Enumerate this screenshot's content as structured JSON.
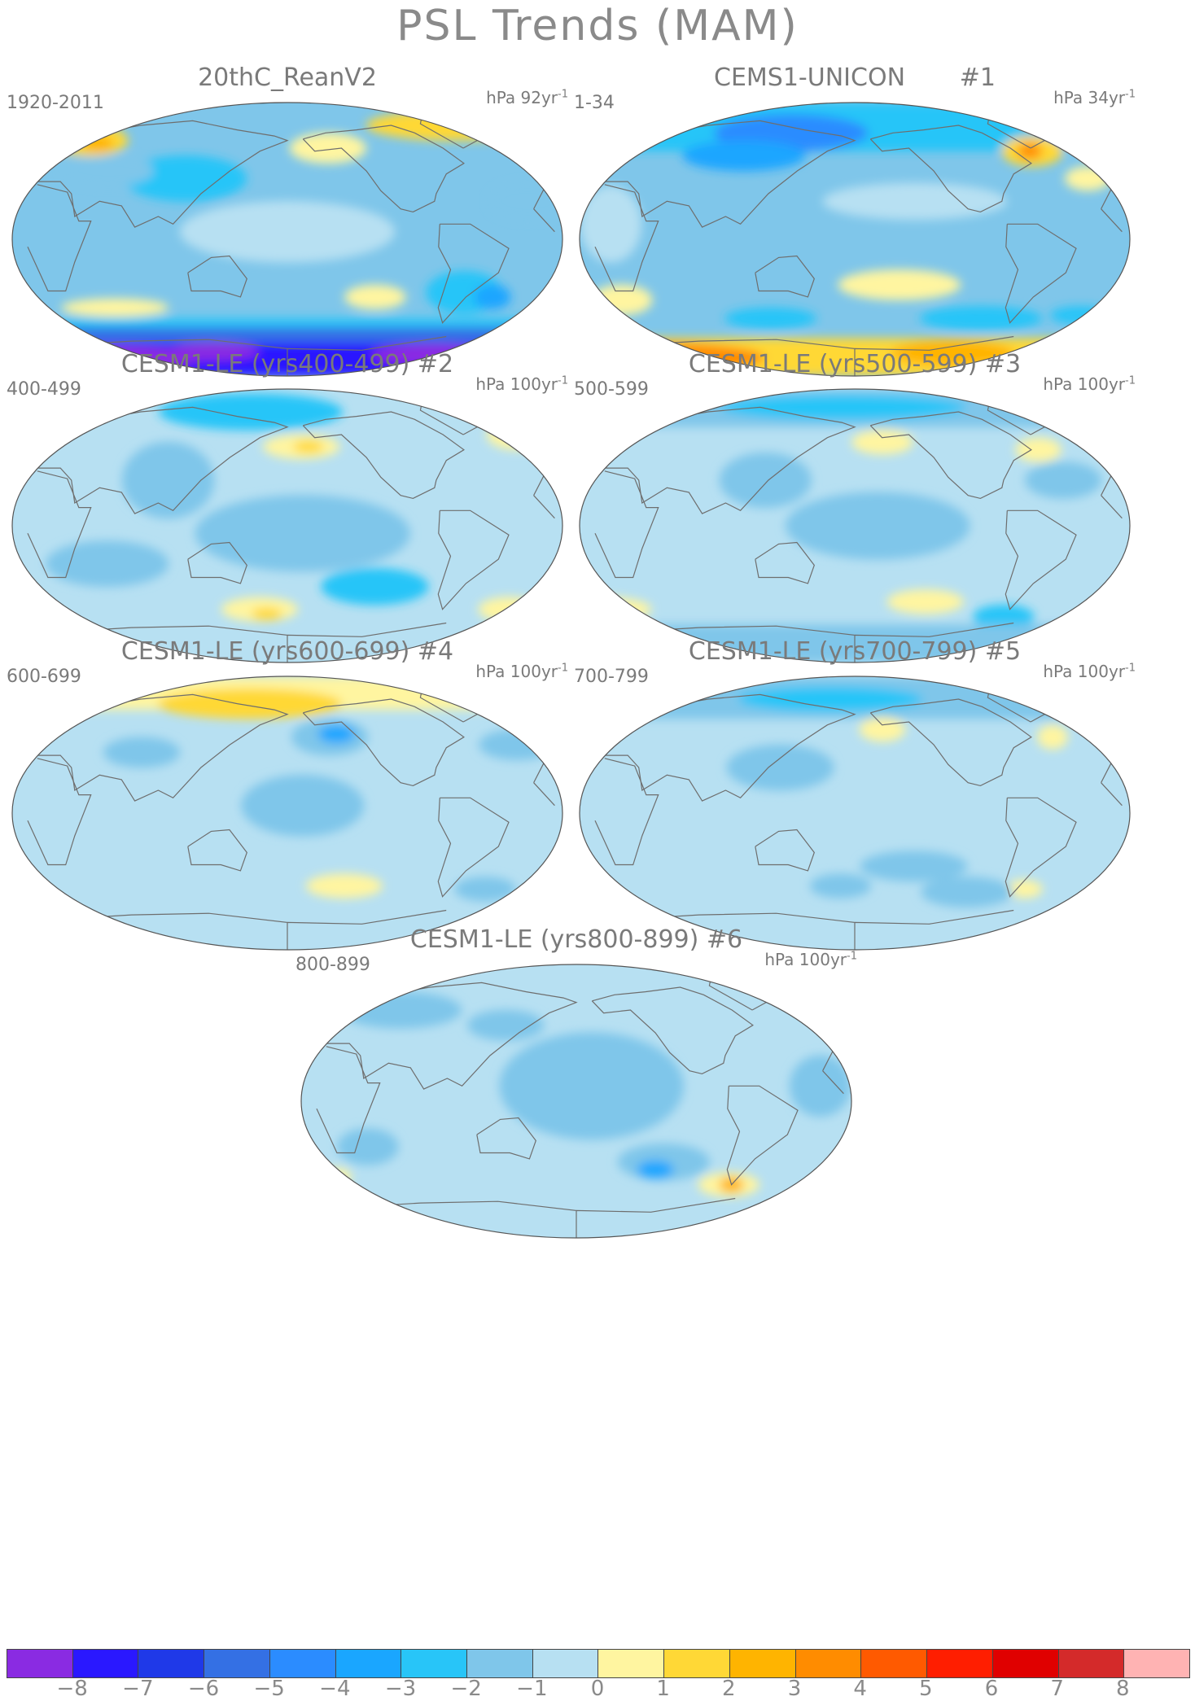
{
  "title": "PSL Trends (MAM)",
  "panels": [
    {
      "title": "20thC_ReanV2",
      "years": "1920-2011",
      "units_base": "hPa 92yr",
      "units_exp": "-1",
      "features": [
        {
          "kind": "band",
          "lat0": -90,
          "lat1": -68,
          "level": -7
        },
        {
          "kind": "band",
          "lat0": -68,
          "lat1": -58,
          "level": -5
        },
        {
          "kind": "band",
          "lat0": -58,
          "lat1": -52,
          "level": -2
        },
        {
          "kind": "blob",
          "lon": 30,
          "lat": -78,
          "rx": 60,
          "ry": 8,
          "level": -8
        },
        {
          "kind": "blob",
          "lon": -60,
          "lat": -76,
          "rx": 40,
          "ry": 7,
          "level": -8
        },
        {
          "kind": "blob",
          "lon": 120,
          "lat": -74,
          "rx": 30,
          "ry": 6,
          "level": -8
        },
        {
          "kind": "blob",
          "lon": 60,
          "lat": -45,
          "rx": 35,
          "ry": 6,
          "level": 1
        },
        {
          "kind": "blob",
          "lon": -120,
          "lat": -38,
          "rx": 20,
          "ry": 8,
          "level": 1
        },
        {
          "kind": "blob",
          "lon": -60,
          "lat": -35,
          "rx": 25,
          "ry": 14,
          "level": -2
        },
        {
          "kind": "blob",
          "lon": -40,
          "lat": -38,
          "rx": 12,
          "ry": 8,
          "level": -3
        },
        {
          "kind": "blob",
          "lon": 110,
          "lat": 40,
          "rx": 40,
          "ry": 15,
          "level": -2
        },
        {
          "kind": "blob",
          "lon": 55,
          "lat": 45,
          "rx": 30,
          "ry": 10,
          "level": -1
        },
        {
          "kind": "blob",
          "lon": -40,
          "lat": 75,
          "rx": 60,
          "ry": 10,
          "level": 2
        },
        {
          "kind": "blob",
          "lon": 30,
          "lat": 65,
          "rx": 25,
          "ry": 10,
          "level": 2
        },
        {
          "kind": "blob",
          "lon": 38,
          "lat": 63,
          "rx": 10,
          "ry": 5,
          "level": 3
        },
        {
          "kind": "blob",
          "lon": -150,
          "lat": 60,
          "rx": 25,
          "ry": 10,
          "level": 1
        },
        {
          "kind": "blob",
          "lon": -20,
          "lat": 25,
          "rx": 25,
          "ry": 12,
          "level": -1
        },
        {
          "kind": "blob",
          "lon": 180,
          "lat": 5,
          "rx": 70,
          "ry": 20,
          "level": 0
        }
      ],
      "base_level": -1
    },
    {
      "title": "CEMS1-UNICON       #1",
      "years": "1-34",
      "units_base": "hPa 34yr",
      "units_exp": "-1",
      "features": [
        {
          "kind": "band",
          "lat0": -90,
          "lat1": -65,
          "level": 2
        },
        {
          "kind": "blob",
          "lon": 0,
          "lat": -78,
          "rx": 80,
          "ry": 10,
          "level": 4
        },
        {
          "kind": "blob",
          "lon": -100,
          "lat": -75,
          "rx": 40,
          "ry": 8,
          "level": 3
        },
        {
          "kind": "blob",
          "lon": -90,
          "lat": -52,
          "rx": 40,
          "ry": 8,
          "level": -2
        },
        {
          "kind": "blob",
          "lon": 120,
          "lat": -52,
          "rx": 30,
          "ry": 7,
          "level": -2
        },
        {
          "kind": "blob",
          "lon": -20,
          "lat": -50,
          "rx": 20,
          "ry": 6,
          "level": -2
        },
        {
          "kind": "blob",
          "lon": 20,
          "lat": -40,
          "rx": 20,
          "ry": 10,
          "level": 1
        },
        {
          "kind": "blob",
          "lon": -150,
          "lat": -30,
          "rx": 40,
          "ry": 10,
          "level": 1
        },
        {
          "kind": "band",
          "lat0": 58,
          "lat1": 90,
          "level": -2
        },
        {
          "kind": "blob",
          "lon": 130,
          "lat": 70,
          "rx": 50,
          "ry": 12,
          "level": -4
        },
        {
          "kind": "blob",
          "lon": 100,
          "lat": 55,
          "rx": 40,
          "ry": 10,
          "level": -3
        },
        {
          "kind": "blob",
          "lon": -50,
          "lat": 58,
          "rx": 20,
          "ry": 10,
          "level": 2
        },
        {
          "kind": "blob",
          "lon": -52,
          "lat": 58,
          "rx": 8,
          "ry": 5,
          "level": 4
        },
        {
          "kind": "blob",
          "lon": -20,
          "lat": 40,
          "rx": 15,
          "ry": 8,
          "level": 1
        },
        {
          "kind": "blob",
          "lon": -140,
          "lat": 25,
          "rx": 60,
          "ry": 12,
          "level": 0
        },
        {
          "kind": "blob",
          "lon": 20,
          "lat": 10,
          "rx": 20,
          "ry": 25,
          "level": 0
        }
      ],
      "base_level": -1
    },
    {
      "title": "CESM1-LE (yrs400-499) #2",
      "years": "400-499",
      "units_base": "hPa 100yr",
      "units_exp": "-1",
      "features": [
        {
          "kind": "blob",
          "lon": 150,
          "lat": 75,
          "rx": 60,
          "ry": 12,
          "level": -2
        },
        {
          "kind": "blob",
          "lon": -170,
          "lat": 52,
          "rx": 25,
          "ry": 8,
          "level": 1
        },
        {
          "kind": "blob",
          "lon": -165,
          "lat": 52,
          "rx": 10,
          "ry": 4,
          "level": 2
        },
        {
          "kind": "blob",
          "lon": -10,
          "lat": 60,
          "rx": 20,
          "ry": 10,
          "level": 1
        },
        {
          "kind": "blob",
          "lon": -120,
          "lat": -40,
          "rx": 35,
          "ry": 12,
          "level": -2
        },
        {
          "kind": "blob",
          "lon": 160,
          "lat": -55,
          "rx": 25,
          "ry": 8,
          "level": 1
        },
        {
          "kind": "blob",
          "lon": 165,
          "lat": -58,
          "rx": 10,
          "ry": 4,
          "level": 2
        },
        {
          "kind": "blob",
          "lon": -20,
          "lat": -55,
          "rx": 20,
          "ry": 8,
          "level": 1
        },
        {
          "kind": "blob",
          "lon": -170,
          "lat": -5,
          "rx": 70,
          "ry": 25,
          "level": -1
        },
        {
          "kind": "blob",
          "lon": 100,
          "lat": 30,
          "rx": 30,
          "ry": 25,
          "level": -1
        },
        {
          "kind": "blob",
          "lon": 60,
          "lat": -25,
          "rx": 40,
          "ry": 15,
          "level": -1
        }
      ],
      "base_level": 0
    },
    {
      "title": "CESM1-LE (yrs500-599) #3",
      "years": "500-599",
      "units_base": "hPa 100yr",
      "units_exp": "-1",
      "features": [
        {
          "kind": "band",
          "lat0": 65,
          "lat1": 90,
          "level": -1
        },
        {
          "kind": "blob",
          "lon": 170,
          "lat": 78,
          "rx": 80,
          "ry": 8,
          "level": -2
        },
        {
          "kind": "blob",
          "lon": -160,
          "lat": 55,
          "rx": 20,
          "ry": 8,
          "level": 1
        },
        {
          "kind": "blob",
          "lon": -50,
          "lat": 50,
          "rx": 15,
          "ry": 8,
          "level": 1
        },
        {
          "kind": "blob",
          "lon": -165,
          "lat": 0,
          "rx": 60,
          "ry": 22,
          "level": -1
        },
        {
          "kind": "blob",
          "lon": 120,
          "lat": 30,
          "rx": 30,
          "ry": 18,
          "level": -1
        },
        {
          "kind": "blob",
          "lon": -40,
          "lat": 30,
          "rx": 25,
          "ry": 12,
          "level": -1
        },
        {
          "kind": "blob",
          "lon": -130,
          "lat": -50,
          "rx": 25,
          "ry": 8,
          "level": 1
        },
        {
          "kind": "blob",
          "lon": 0,
          "lat": -55,
          "rx": 30,
          "ry": 8,
          "level": 1
        },
        {
          "kind": "blob",
          "lon": -70,
          "lat": -60,
          "rx": 20,
          "ry": 8,
          "level": -2
        },
        {
          "kind": "band",
          "lat0": -90,
          "lat1": -65,
          "level": -1
        }
      ],
      "base_level": 0
    },
    {
      "title": "CESM1-LE (yrs600-699) #4",
      "years": "600-699",
      "units_base": "hPa 100yr",
      "units_exp": "-1",
      "features": [
        {
          "kind": "band",
          "lat0": 68,
          "lat1": 90,
          "level": 1
        },
        {
          "kind": "blob",
          "lon": 150,
          "lat": 72,
          "rx": 60,
          "ry": 10,
          "level": 2
        },
        {
          "kind": "blob",
          "lon": -150,
          "lat": 50,
          "rx": 25,
          "ry": 12,
          "level": -1
        },
        {
          "kind": "blob",
          "lon": -145,
          "lat": 52,
          "rx": 12,
          "ry": 6,
          "level": -3
        },
        {
          "kind": "blob",
          "lon": -20,
          "lat": 45,
          "rx": 25,
          "ry": 10,
          "level": -1
        },
        {
          "kind": "blob",
          "lon": 80,
          "lat": 40,
          "rx": 25,
          "ry": 10,
          "level": -1
        },
        {
          "kind": "blob",
          "lon": -170,
          "lat": 5,
          "rx": 40,
          "ry": 20,
          "level": -1
        },
        {
          "kind": "blob",
          "lon": -140,
          "lat": -48,
          "rx": 25,
          "ry": 8,
          "level": 1
        },
        {
          "kind": "blob",
          "lon": -40,
          "lat": -50,
          "rx": 20,
          "ry": 8,
          "level": -1
        }
      ],
      "base_level": 0
    },
    {
      "title": "CESM1-LE (yrs700-799) #5",
      "years": "700-799",
      "units_base": "hPa 100yr",
      "units_exp": "-1",
      "features": [
        {
          "kind": "band",
          "lat0": 62,
          "lat1": 90,
          "level": -1
        },
        {
          "kind": "blob",
          "lon": 160,
          "lat": 75,
          "rx": 60,
          "ry": 8,
          "level": -2
        },
        {
          "kind": "blob",
          "lon": -160,
          "lat": 55,
          "rx": 15,
          "ry": 8,
          "level": 1
        },
        {
          "kind": "blob",
          "lon": -40,
          "lat": 50,
          "rx": 10,
          "ry": 8,
          "level": 1
        },
        {
          "kind": "blob",
          "lon": 130,
          "lat": 30,
          "rx": 35,
          "ry": 15,
          "level": -1
        },
        {
          "kind": "blob",
          "lon": -140,
          "lat": -35,
          "rx": 35,
          "ry": 10,
          "level": -1
        },
        {
          "kind": "blob",
          "lon": -60,
          "lat": -50,
          "rx": 12,
          "ry": 6,
          "level": 1
        },
        {
          "kind": "blob",
          "lon": -100,
          "lat": -52,
          "rx": 30,
          "ry": 10,
          "level": -1
        },
        {
          "kind": "blob",
          "lon": 170,
          "lat": -48,
          "rx": 20,
          "ry": 8,
          "level": -1
        }
      ],
      "base_level": 0
    },
    {
      "title": "CESM1-LE (yrs800-899) #6",
      "years": "800-899",
      "units_base": "hPa 100yr",
      "units_exp": "-1",
      "features": [
        {
          "kind": "blob",
          "lon": -170,
          "lat": 10,
          "rx": 60,
          "ry": 35,
          "level": -1
        },
        {
          "kind": "blob",
          "lon": -120,
          "lat": -40,
          "rx": 30,
          "ry": 12,
          "level": -1
        },
        {
          "kind": "blob",
          "lon": -125,
          "lat": -45,
          "rx": 12,
          "ry": 6,
          "level": -3
        },
        {
          "kind": "blob",
          "lon": -70,
          "lat": -55,
          "rx": 20,
          "ry": 8,
          "level": 1
        },
        {
          "kind": "blob",
          "lon": -68,
          "lat": -55,
          "rx": 8,
          "ry": 5,
          "level": 3
        },
        {
          "kind": "blob",
          "lon": 50,
          "lat": 60,
          "rx": 40,
          "ry": 12,
          "level": -1
        },
        {
          "kind": "blob",
          "lon": 130,
          "lat": 50,
          "rx": 25,
          "ry": 10,
          "level": -1
        },
        {
          "kind": "blob",
          "lon": -20,
          "lat": 10,
          "rx": 20,
          "ry": 20,
          "level": -1
        },
        {
          "kind": "blob",
          "lon": 40,
          "lat": -30,
          "rx": 20,
          "ry": 12,
          "level": -1
        },
        {
          "kind": "blob",
          "lon": 10,
          "lat": -50,
          "rx": 10,
          "ry": 6,
          "level": 1
        }
      ],
      "base_level": 0
    }
  ],
  "colorbar": {
    "labels": [
      "-8",
      "-7",
      "-6",
      "-5",
      "-4",
      "-3",
      "-2",
      "-1",
      "0",
      "1",
      "2",
      "3",
      "4",
      "5",
      "6",
      "7",
      "8"
    ],
    "colors": [
      "#8a2be2",
      "#2a18ff",
      "#1f39e8",
      "#3470e4",
      "#2b8cff",
      "#1aa6ff",
      "#28c5f8",
      "#7fc6ea",
      "#b7e0f2",
      "#fff5a0",
      "#ffd836",
      "#ffb400",
      "#ff8c00",
      "#ff5a00",
      "#ff1e00",
      "#e00000",
      "#d42a2a",
      "#ffb3b3"
    ]
  }
}
